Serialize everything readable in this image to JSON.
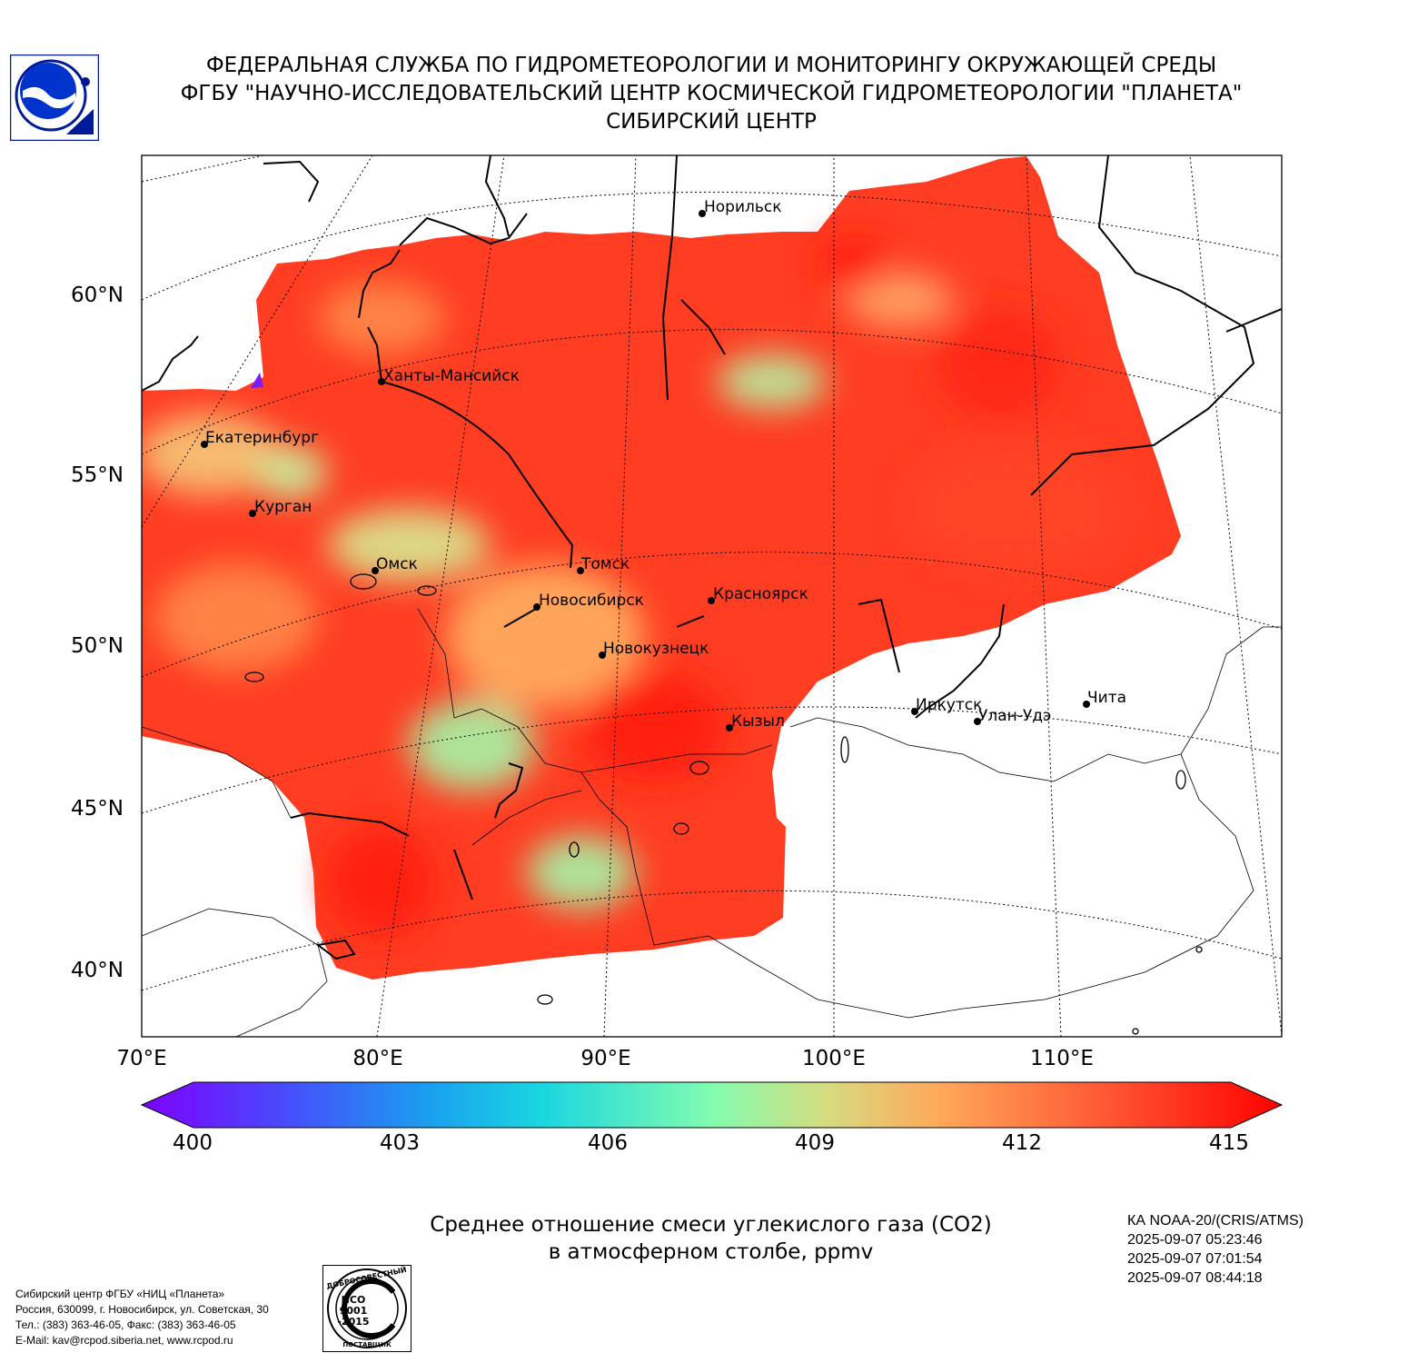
{
  "header": {
    "line1": "ФЕДЕРАЛЬНАЯ СЛУЖБА ПО ГИДРОМЕТЕОРОЛОГИИ И МОНИТОРИНГУ ОКРУЖАЮЩЕЙ СРЕДЫ",
    "line2": "ФГБУ \"НАУЧНО-ИССЛЕДОВАТЕЛЬСКИЙ ЦЕНТР КОСМИЧЕСКОЙ ГИДРОМЕТЕОРОЛОГИИ \"ПЛАНЕТА\"",
    "line3": "СИБИРСКИЙ ЦЕНТР"
  },
  "map": {
    "lat_labels": [
      "60°N",
      "55°N",
      "50°N",
      "45°N",
      "40°N"
    ],
    "lon_labels": [
      "70°E",
      "80°E",
      "90°E",
      "100°E",
      "110°E"
    ],
    "cities": [
      "Норильск",
      "Ханты-Мансийск",
      "Екатеринбург",
      "Курган",
      "Омск",
      "Томск",
      "Новосибирск",
      "Красноярск",
      "Новокузнецк",
      "Иркутск",
      "Улан-Удэ",
      "Чита",
      "Кызыл"
    ],
    "field_color": "#ff2a16",
    "coast_color": "#000000"
  },
  "colorbar": {
    "ticks": [
      "400",
      "403",
      "406",
      "409",
      "412",
      "415"
    ],
    "min": 400,
    "max": 415,
    "extend": "both"
  },
  "title": {
    "line1": "Среднее отношение смеси углекислого газа (CO2)",
    "line2": "в атмосферном столбе, ppmv"
  },
  "satellite": {
    "name": "КА NOAA-20/(CRIS/ATMS)",
    "times": [
      "2025-09-07 05:23:46",
      "2025-09-07 07:01:54",
      "2025-09-07 08:44:18"
    ]
  },
  "org": {
    "line1": "Сибирский центр ФГБУ «НИЦ «Планета»",
    "line2": "Россия, 630099, г. Новосибирск, ул. Советская, 30",
    "line3": "Тел.: (383) 363-46-05, Факс: (383) 363-46-05",
    "line4": "E-Mail: kav@rcpod.siberia.net, www.rcpod.ru"
  },
  "iso_badge": {
    "top": "ДОБРОСОВЕСТНЫЙ",
    "mid1": "ИСО",
    "mid2": "9001",
    "mid3": "-2015",
    "bottom": "ПОСТАВЩИК"
  }
}
